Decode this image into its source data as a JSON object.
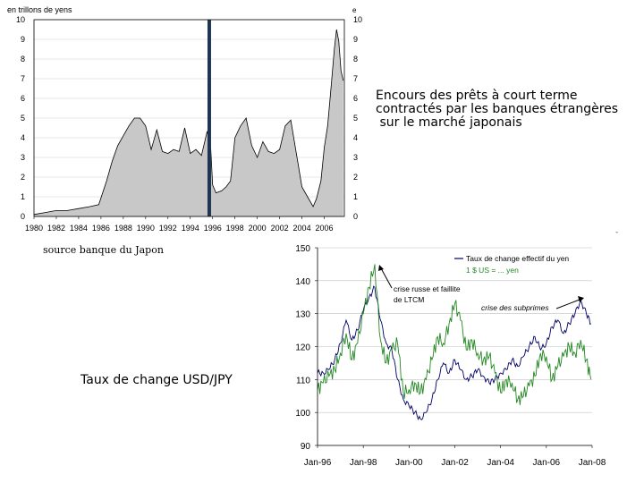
{
  "slide": {
    "caption_lines": [
      "Encours des prêts à court terme",
      "contractés par les banques étrangères",
      " sur le marché japonais"
    ],
    "source_note": "source banque du Japon",
    "fx_caption": "Taux de change USD/JPY",
    "corner_mark": "-"
  },
  "chart_data": [
    {
      "type": "area",
      "ylabel": "en trillons de yens",
      "right_axis_label": "e",
      "ylim": [
        0,
        10
      ],
      "yticks": [
        "0",
        "1",
        "2",
        "3",
        "4",
        "5",
        "6",
        "7",
        "8",
        "9",
        "10"
      ],
      "xlim": [
        1980,
        2007.8
      ],
      "xticks": [
        "1980",
        "1982",
        "1984",
        "1986",
        "1988",
        "1990",
        "1992",
        "1994",
        "1996",
        "1998",
        "2000",
        "2002",
        "2004",
        "2006"
      ],
      "marker_line_x": 1995.7,
      "colors": {
        "fill": "#c8c8c8",
        "line": "#000000",
        "marker": "#1f3550"
      },
      "series": [
        {
          "x": [
            1980,
            1981,
            1982,
            1983,
            1984,
            1985,
            1985.8,
            1986.5,
            1987,
            1987.5,
            1988,
            1988.5,
            1989,
            1989.5,
            1990,
            1990.5,
            1991,
            1991.5,
            1992,
            1992.5,
            1993,
            1993.5,
            1994,
            1994.5,
            1995,
            1995.5,
            1995.8,
            1996,
            1996.3,
            1996.8,
            1997.2,
            1997.6,
            1998,
            1998.5,
            1999,
            1999.5,
            2000,
            2000.5,
            2001,
            2001.5,
            2002,
            2002.5,
            2003,
            2003.5,
            2004,
            2004.5,
            2005,
            2005.3,
            2005.7,
            2006,
            2006.3,
            2006.6,
            2006.9,
            2007.1,
            2007.3,
            2007.5,
            2007.7
          ],
          "y": [
            0.1,
            0.2,
            0.3,
            0.3,
            0.4,
            0.5,
            0.6,
            1.8,
            2.8,
            3.6,
            4.1,
            4.6,
            5.0,
            5.0,
            4.6,
            3.4,
            4.4,
            3.3,
            3.2,
            3.4,
            3.3,
            4.5,
            3.2,
            3.4,
            3.1,
            4.3,
            3.8,
            1.6,
            1.2,
            1.3,
            1.5,
            1.8,
            4.0,
            4.6,
            5.0,
            3.6,
            3.0,
            3.8,
            3.3,
            3.2,
            3.4,
            4.6,
            4.9,
            3.2,
            1.5,
            1.0,
            0.5,
            0.9,
            1.8,
            3.5,
            4.6,
            6.5,
            8.5,
            9.5,
            8.9,
            7.4,
            6.9
          ]
        }
      ]
    },
    {
      "type": "line",
      "ylim": [
        90,
        150
      ],
      "yticks": [
        "150",
        "140",
        "130",
        "120",
        "110",
        "100",
        "90"
      ],
      "xlim": [
        1996,
        2008
      ],
      "xticks": [
        "Jan-96",
        "Jan-98",
        "Jan-00",
        "Jan-02",
        "Jan-04",
        "Jan-06",
        "Jan-08"
      ],
      "colors": {
        "effective_rate": "#000066",
        "usd_rate": "#228822",
        "arrow": "#000000"
      },
      "legend": [
        {
          "label": "Taux de change effectif du yen",
          "color": "#000066"
        },
        {
          "label": "1 $ US = ... yen",
          "color": "#228822"
        }
      ],
      "annotations": [
        {
          "text": "crise russe et faillite",
          "text2": "de LTCM",
          "arrow_to": {
            "x": 1998.6,
            "y": 144
          }
        },
        {
          "text": "crise des subprimes",
          "arrow_to": {
            "x": 2007.4,
            "y": 133
          }
        }
      ],
      "series": [
        {
          "name": "Taux de change effectif du yen",
          "x": [
            1996,
            1996.25,
            1996.5,
            1996.75,
            1997,
            1997.25,
            1997.5,
            1997.75,
            1998,
            1998.25,
            1998.5,
            1998.75,
            1999,
            1999.25,
            1999.5,
            1999.75,
            2000,
            2000.25,
            2000.5,
            2000.75,
            2001,
            2001.25,
            2001.5,
            2001.75,
            2002,
            2002.25,
            2002.5,
            2002.75,
            2003,
            2003.25,
            2003.5,
            2003.75,
            2004,
            2004.25,
            2004.5,
            2004.75,
            2005,
            2005.25,
            2005.5,
            2005.75,
            2006,
            2006.25,
            2006.5,
            2006.75,
            2007,
            2007.25,
            2007.5,
            2007.75,
            2007.95
          ],
          "y": [
            112,
            112,
            113,
            116,
            121,
            128,
            122,
            125,
            131,
            135,
            138,
            128,
            121,
            119,
            110,
            104,
            102,
            100,
            98,
            100,
            104,
            110,
            115,
            112,
            116,
            113,
            110,
            111,
            113,
            111,
            109,
            110,
            112,
            113,
            116,
            114,
            117,
            120,
            123,
            119,
            121,
            126,
            128,
            124,
            127,
            130,
            134,
            130,
            127
          ]
        },
        {
          "name": "1 $ US = ... yen",
          "x": [
            1996,
            1996.25,
            1996.5,
            1996.75,
            1997,
            1997.25,
            1997.5,
            1997.75,
            1998,
            1998.25,
            1998.5,
            1998.75,
            1999,
            1999.25,
            1999.5,
            1999.75,
            2000,
            2000.25,
            2000.5,
            2000.75,
            2001,
            2001.25,
            2001.5,
            2001.75,
            2002,
            2002.25,
            2002.5,
            2002.75,
            2003,
            2003.25,
            2003.5,
            2003.75,
            2004,
            2004.25,
            2004.5,
            2004.75,
            2005,
            2005.25,
            2005.5,
            2005.75,
            2006,
            2006.25,
            2006.5,
            2006.75,
            2007,
            2007.25,
            2007.5,
            2007.75,
            2007.95
          ],
          "y": [
            107,
            109,
            111,
            113,
            118,
            124,
            116,
            121,
            130,
            138,
            145,
            122,
            115,
            119,
            121,
            106,
            107,
            109,
            106,
            110,
            116,
            123,
            121,
            127,
            133,
            128,
            119,
            122,
            118,
            116,
            117,
            112,
            106,
            110,
            109,
            104,
            105,
            108,
            111,
            118,
            117,
            110,
            114,
            117,
            120,
            118,
            122,
            116,
            110
          ]
        }
      ]
    }
  ]
}
